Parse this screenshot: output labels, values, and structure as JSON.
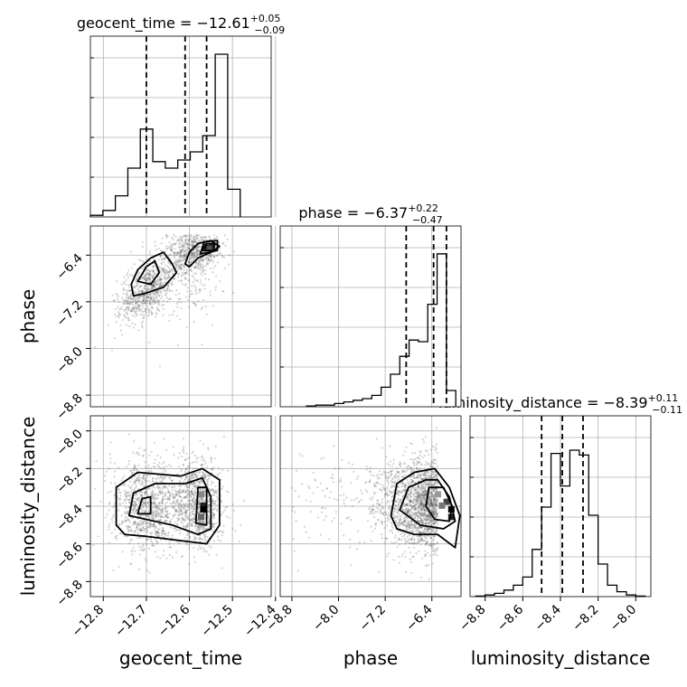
{
  "chart_data": {
    "type": "corner",
    "parameters": [
      {
        "name": "geocent_time",
        "median": "−12.61",
        "plus": "+0.05",
        "minus": "−0.09",
        "range": [
          -12.83,
          -12.41
        ],
        "ticks": [
          -12.8,
          -12.7,
          -12.6,
          -12.5,
          -12.4
        ],
        "tick_labels": [
          "−12.8",
          "−12.7",
          "−12.6",
          "−12.5",
          "−12.4"
        ],
        "quantiles": [
          -12.7,
          -12.61,
          -12.56
        ]
      },
      {
        "name": "phase",
        "median": "−6.37",
        "plus": "+0.22",
        "minus": "−0.47",
        "range": [
          -9.0,
          -5.9
        ],
        "ticks": [
          -8.8,
          -8.0,
          -7.2,
          -6.4
        ],
        "tick_labels": [
          "−8.8",
          "−8.0",
          "−7.2",
          "−6.4"
        ],
        "quantiles": [
          -6.84,
          -6.37,
          -6.15
        ]
      },
      {
        "name": "luminosity_distance",
        "median": "−8.39",
        "plus": "+0.11",
        "minus": "−0.11",
        "range": [
          -8.88,
          -7.92
        ],
        "ticks": [
          -8.8,
          -8.6,
          -8.4,
          -8.2,
          -8.0
        ],
        "tick_labels": [
          "−8.8",
          "−8.6",
          "−8.4",
          "−8.2",
          "−8.0"
        ],
        "quantiles": [
          -8.5,
          -8.39,
          -8.28
        ]
      }
    ],
    "histograms": {
      "geocent_time": [
        0.01,
        0.04,
        0.13,
        0.3,
        0.54,
        0.34,
        0.3,
        0.35,
        0.4,
        0.5,
        1.0,
        0.17
      ],
      "phase": [
        0.005,
        0.01,
        0.01,
        0.02,
        0.03,
        0.04,
        0.05,
        0.07,
        0.12,
        0.2,
        0.31,
        0.41,
        0.4,
        0.63,
        0.94,
        0.1
      ],
      "luminosity_distance": [
        0.003,
        0.01,
        0.02,
        0.04,
        0.07,
        0.12,
        0.29,
        0.55,
        0.88,
        0.68,
        0.9,
        0.87,
        0.5,
        0.2,
        0.07,
        0.03,
        0.01,
        0.003
      ]
    },
    "grid": true,
    "contour_levels": 3,
    "point_color": "#555555",
    "line_color": "#000000",
    "grid_color": "#b0b0b0"
  }
}
